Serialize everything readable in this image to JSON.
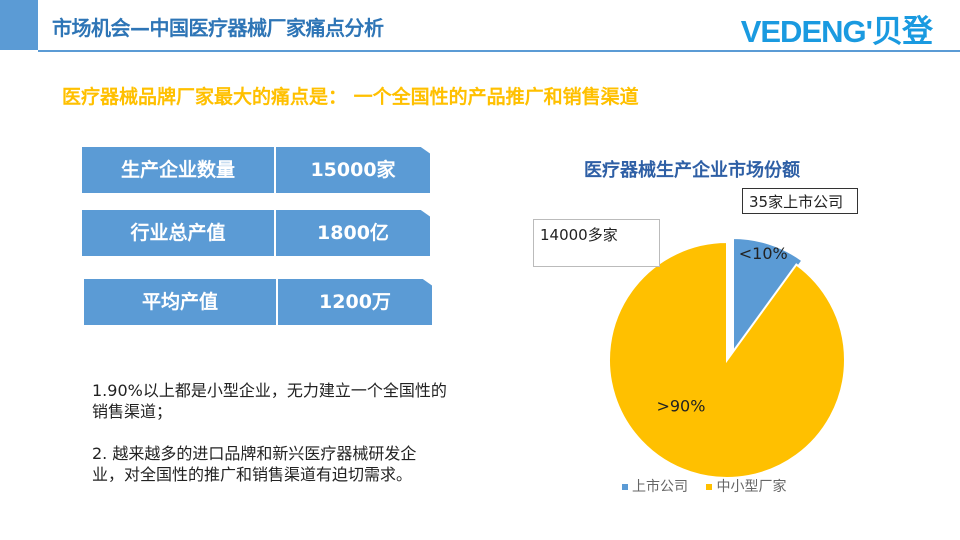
{
  "header": {
    "title": "市场机会—中国医疗器械厂家痛点分析",
    "logo": "VEDENG'贝登"
  },
  "headline": "医疗器械品牌厂家最大的痛点是： 一个全国性的产品推广和销售渠道",
  "stats": [
    {
      "label": "生产企业数量",
      "value": "15000家"
    },
    {
      "label": "行业总产值",
      "value": "1800亿"
    },
    {
      "label": "平均产值",
      "value": "1200万"
    }
  ],
  "notes": [
    "1.90%以上都是小型企业，无力建立一个全国性的销售渠道；",
    "2. 越来越多的进口品牌和新兴医疗器械研发企业，对全国性的推广和销售渠道有迫切需求。"
  ],
  "colors": {
    "accent": "#5b9bd5",
    "yellow": "#ffc000"
  },
  "chart_data": {
    "type": "pie",
    "title": "医疗器械生产企业市场份额",
    "slices": [
      {
        "name": "上市公司",
        "value": 10,
        "label": "<10%",
        "color": "#5b9bd5"
      },
      {
        "name": "中小型厂家",
        "value": 90,
        "label": ">90%",
        "color": "#ffc000"
      }
    ],
    "callouts": [
      "35家上市公司",
      "14000多家"
    ],
    "legend": "bottom"
  }
}
